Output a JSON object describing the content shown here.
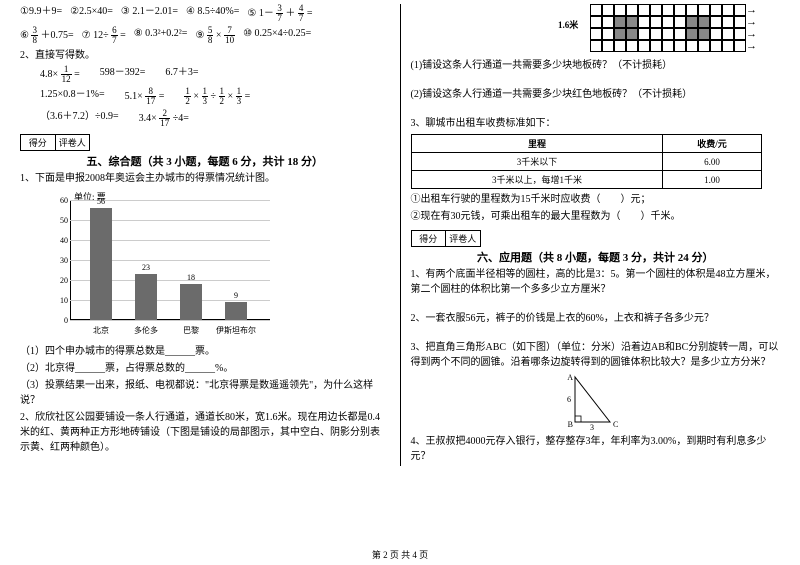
{
  "left": {
    "row1": [
      "①9.9＋9=",
      "②2.5×40=",
      "③ 2.1－2.01=",
      "④ 8.5÷40%=",
      "⑤ 1－",
      "＋",
      "="
    ],
    "frac_3_7": {
      "n": "3",
      "d": "7"
    },
    "frac_4_7": {
      "n": "4",
      "d": "7"
    },
    "row2_a": "⑥",
    "frac_3_8": {
      "n": "3",
      "d": "8"
    },
    "row2_b": "＋0.75=",
    "row2_c": "⑦ 12÷",
    "frac_6_7": {
      "n": "6",
      "d": "7"
    },
    "row2_d": "=",
    "row2_e": "⑧ 0.3²+0.2²=",
    "row2_f": "⑨",
    "frac_5_8": {
      "n": "5",
      "d": "8"
    },
    "row2_g": "×",
    "frac_7_10": {
      "n": "7",
      "d": "10"
    },
    "row2_h": "⑩ 0.25×4÷0.25=",
    "q2_title": "2、直接写得数。",
    "q2_items": [
      [
        "4.8×",
        "=",
        " ",
        "598－392=",
        " ",
        "6.7＋3="
      ],
      [
        "1.25×0.8－1%=",
        " ",
        "5.1×",
        "=",
        " ",
        "",
        "×",
        "÷",
        "×",
        "="
      ],
      [
        "（3.6＋7.2）÷0.9=",
        " ",
        "3.4×",
        "÷4="
      ]
    ],
    "frac_1_12": {
      "n": "1",
      "d": "12"
    },
    "frac_8_17": {
      "n": "8",
      "d": "17"
    },
    "frac_1_2": {
      "n": "1",
      "d": "2"
    },
    "frac_1_3": {
      "n": "1",
      "d": "3"
    },
    "frac_2_17": {
      "n": "2",
      "d": "17"
    },
    "score": {
      "a": "得分",
      "b": "评卷人"
    },
    "section5": "五、综合题（共 3 小题，每题 6 分，共计 18 分）",
    "q5_1": "1、下面是申报2008年奥运会主办城市的得票情况统计图。",
    "chart": {
      "unit": "单位: 票",
      "ymax": 60,
      "ystep": 10,
      "bars": [
        {
          "label": "北京",
          "value": 56,
          "h": 112
        },
        {
          "label": "多伦多",
          "value": 23,
          "h": 46
        },
        {
          "label": "巴黎",
          "value": 18,
          "h": 36
        },
        {
          "label": "伊斯坦布尔",
          "value": 9,
          "h": 18
        }
      ],
      "colors": {
        "bar": "#6b6b6b",
        "grid": "#cccccc"
      }
    },
    "q5_1a": "（1）四个申办城市的得票总数是______票。",
    "q5_1b": "（2）北京得______票，占得票总数的______%。",
    "q5_1c": "（3）投票结果一出来，报纸、电视都说：\"北京得票是数遥遥领先\"，为什么这样说？",
    "q5_2": "2、欣欣社区公园要铺设一条人行通道，通道长80米，宽1.6米。现在用边长都是0.4米的红、黄两种正方形地砖铺设（下图是铺设的局部图示，其中空白、阴影分别表示黄、红两种颜色）。"
  },
  "right": {
    "width_label": "1.6米",
    "tiles": {
      "rows": 4,
      "cols": 13,
      "red_cells": [
        [
          1,
          2
        ],
        [
          1,
          3
        ],
        [
          2,
          2
        ],
        [
          2,
          3
        ],
        [
          1,
          8
        ],
        [
          1,
          9
        ],
        [
          2,
          8
        ],
        [
          2,
          9
        ]
      ]
    },
    "q_r1": "(1)铺设这条人行通道一共需要多少块地板砖？（不计损耗）",
    "q_r2": "(2)铺设这条人行通道一共需要多少块红色地板砖？（不计损耗）",
    "q_r3_title": "3、聊城市出租车收费标准如下：",
    "fare_table": {
      "headers": [
        "里程",
        "收费/元"
      ],
      "rows": [
        [
          "3千米以下",
          "6.00"
        ],
        [
          "3千米以上，每增1千米",
          "1.00"
        ]
      ]
    },
    "q_r3a": "①出租车行驶的里程数为15千米时应收费（　　）元；",
    "q_r3b": "②现在有30元钱，可乘出租车的最大里程数为（　　）千米。",
    "score": {
      "a": "得分",
      "b": "评卷人"
    },
    "section6": "六、应用题（共 8 小题，每题 3 分，共计 24 分）",
    "q6_1": "1、有两个底面半径相等的圆柱，高的比是3：5。第一个圆柱的体积是48立方厘米，第二个圆柱的体积比第一个多多少立方厘米？",
    "q6_2": "2、一套衣服56元，裤子的价钱是上衣的60%，上衣和裤子各多少元？",
    "q6_3": "3、把直角三角形ABC（如下图）（单位：分米）沿着边AB和BC分别旋转一周，可以得到两个不同的圆锥。沿着哪条边旋转得到的圆锥体积比较大？是多少立方分米？",
    "triangle": {
      "A": "A",
      "B": "B",
      "C": "C",
      "ab": "6",
      "bc": "3"
    },
    "q6_4": "4、王叔叔把4000元存入银行，整存整存3年，年利率为3.00%，到期时有利息多少元？"
  },
  "footer": "第 2 页 共 4 页"
}
